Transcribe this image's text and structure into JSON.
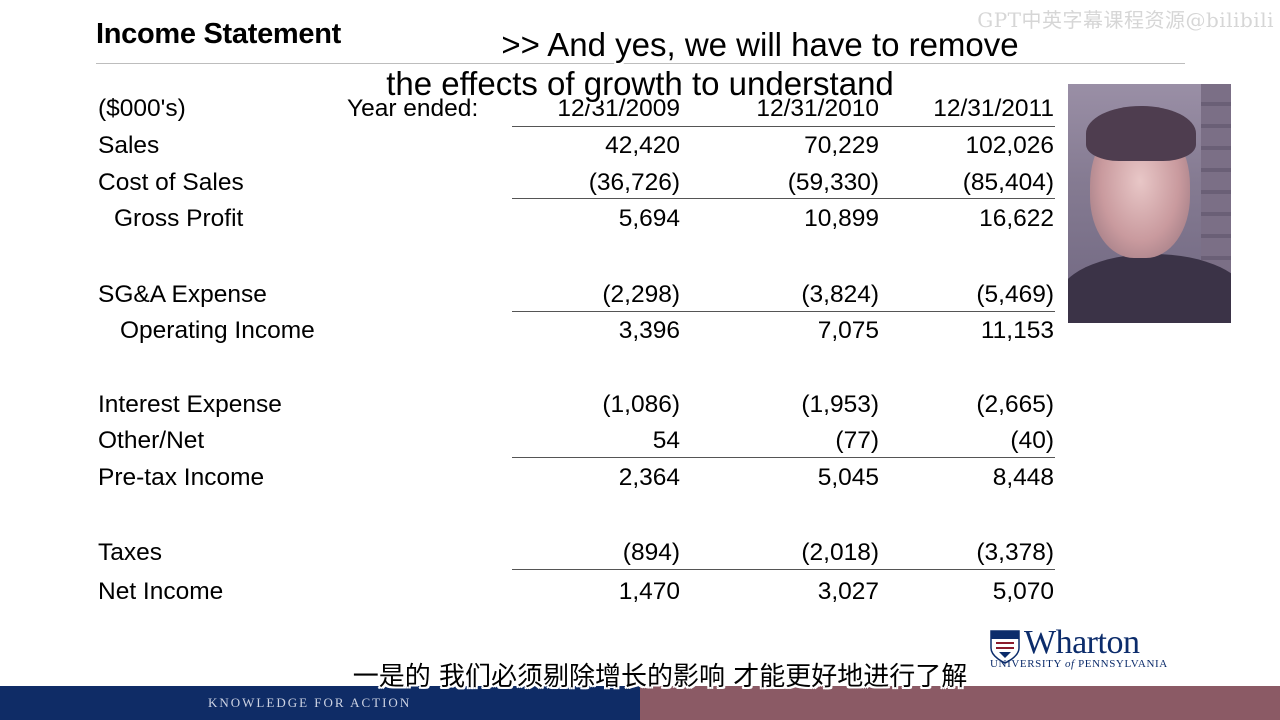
{
  "watermark": "GPT中英字幕课程资源@bilibili",
  "title": "Income Statement",
  "subtitles": {
    "en_line1": ">> And yes, we will have to remove",
    "en_line2": "the effects of growth to understand",
    "zh": "一是的 我们必须剔除增长的影响 才能更好地进行了解"
  },
  "table": {
    "units": "($000's)",
    "year_label": "Year ended:",
    "columns": [
      "12/31/2009",
      "12/31/2010",
      "12/31/2011"
    ],
    "rows": [
      {
        "label": "Sales",
        "values": [
          "42,420",
          "70,229",
          "102,026"
        ]
      },
      {
        "label": "Cost of Sales",
        "values": [
          "(36,726)",
          "(59,330)",
          "(85,404)"
        ]
      },
      {
        "label": "Gross Profit",
        "values": [
          "5,694",
          "10,899",
          "16,622"
        ]
      },
      {
        "label": "SG&A Expense",
        "values": [
          "(2,298)",
          "(3,824)",
          "(5,469)"
        ]
      },
      {
        "label": "Operating Income",
        "values": [
          "3,396",
          "7,075",
          "11,153"
        ]
      },
      {
        "label": "Interest Expense",
        "values": [
          "(1,086)",
          "(1,953)",
          "(2,665)"
        ]
      },
      {
        "label": "Other/Net",
        "values": [
          "54",
          "(77)",
          "(40)"
        ]
      },
      {
        "label": "Pre-tax Income",
        "values": [
          "2,364",
          "5,045",
          "8,448"
        ]
      },
      {
        "label": "Taxes",
        "values": [
          "(894)",
          "(2,018)",
          "(3,378)"
        ]
      },
      {
        "label": "Net Income",
        "values": [
          "1,470",
          "3,027",
          "5,070"
        ]
      }
    ]
  },
  "logo": {
    "name": "Wharton",
    "university_prefix": "UNIVERSITY",
    "university_of": "of",
    "university_suffix": "PENNSYLVANIA"
  },
  "footer": {
    "tagline": "KNOWLEDGE FOR ACTION"
  },
  "colors": {
    "footer_blue": "#0f2c66",
    "footer_red": "#8b5a65",
    "wharton_blue": "#0c2c6b"
  }
}
